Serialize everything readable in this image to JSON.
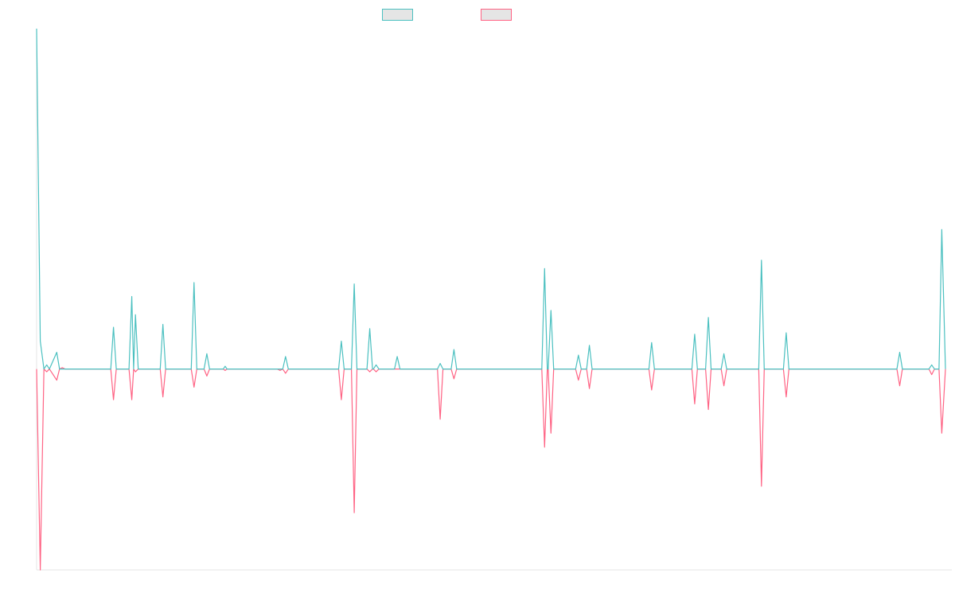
{
  "chart_data": {
    "type": "line",
    "title": "",
    "xlabel": "",
    "ylabel": "",
    "ylim": [
      -7.2,
      12.2
    ],
    "grid": false,
    "legend_placement": "top-center",
    "series": [
      {
        "color": "#4bc0c0",
        "points": [
          [
            0.0,
            12.2
          ],
          [
            0.4,
            1.0
          ],
          [
            0.8,
            0
          ],
          [
            1.1,
            0.15
          ],
          [
            1.4,
            0
          ],
          [
            2.2,
            0.6
          ],
          [
            2.5,
            0
          ],
          [
            2.8,
            0
          ],
          [
            3.6,
            0
          ],
          [
            8.1,
            0
          ],
          [
            8.4,
            1.5
          ],
          [
            8.7,
            0
          ],
          [
            10.1,
            0
          ],
          [
            10.4,
            2.6
          ],
          [
            10.6,
            0
          ],
          [
            10.8,
            1.95
          ],
          [
            11.1,
            0
          ],
          [
            13.5,
            0
          ],
          [
            13.8,
            1.6
          ],
          [
            14.1,
            0
          ],
          [
            16.9,
            0
          ],
          [
            17.2,
            3.1
          ],
          [
            17.5,
            0
          ],
          [
            18.3,
            0
          ],
          [
            18.6,
            0.55
          ],
          [
            18.9,
            0
          ],
          [
            20.4,
            0
          ],
          [
            20.6,
            0.1
          ],
          [
            20.8,
            0
          ],
          [
            26.3,
            0
          ],
          [
            26.6,
            0
          ],
          [
            26.9,
            0
          ],
          [
            27.2,
            0.45
          ],
          [
            27.5,
            0
          ],
          [
            33.0,
            0
          ],
          [
            33.3,
            1.0
          ],
          [
            33.6,
            0
          ],
          [
            34.4,
            0
          ],
          [
            34.7,
            3.05
          ],
          [
            35.0,
            0
          ],
          [
            36.1,
            0
          ],
          [
            36.4,
            1.45
          ],
          [
            36.7,
            0
          ],
          [
            36.8,
            0
          ],
          [
            37.1,
            0.15
          ],
          [
            37.4,
            0
          ],
          [
            39.1,
            0
          ],
          [
            39.4,
            0.45
          ],
          [
            39.7,
            0
          ],
          [
            43.8,
            0
          ],
          [
            44.1,
            0.2
          ],
          [
            44.4,
            0
          ],
          [
            45.3,
            0
          ],
          [
            45.6,
            0.7
          ],
          [
            45.9,
            0
          ],
          [
            55.2,
            0
          ],
          [
            55.5,
            3.6
          ],
          [
            55.8,
            0
          ],
          [
            55.9,
            0
          ],
          [
            56.2,
            2.1
          ],
          [
            56.5,
            0
          ],
          [
            58.9,
            0
          ],
          [
            59.2,
            0.5
          ],
          [
            59.5,
            0
          ],
          [
            60.1,
            0
          ],
          [
            60.4,
            0.85
          ],
          [
            60.7,
            0
          ],
          [
            66.9,
            0
          ],
          [
            67.2,
            0.95
          ],
          [
            67.5,
            0
          ],
          [
            71.6,
            0
          ],
          [
            71.9,
            1.25
          ],
          [
            72.2,
            0
          ],
          [
            73.1,
            0
          ],
          [
            73.4,
            1.85
          ],
          [
            73.7,
            0
          ],
          [
            74.8,
            0
          ],
          [
            75.1,
            0.55
          ],
          [
            75.4,
            0
          ],
          [
            78.9,
            0
          ],
          [
            79.2,
            3.9
          ],
          [
            79.5,
            0
          ],
          [
            81.6,
            0
          ],
          [
            81.9,
            1.3
          ],
          [
            82.2,
            0
          ],
          [
            94.0,
            0
          ],
          [
            94.3,
            0.6
          ],
          [
            94.6,
            0
          ],
          [
            97.5,
            0
          ],
          [
            97.8,
            0.15
          ],
          [
            98.1,
            0
          ],
          [
            98.6,
            0
          ],
          [
            98.9,
            5.0
          ],
          [
            99.3,
            0
          ]
        ]
      },
      {
        "color": "#ff6384",
        "points": [
          [
            0.0,
            0
          ],
          [
            0.4,
            -7.2
          ],
          [
            0.8,
            0
          ],
          [
            1.1,
            -0.1
          ],
          [
            1.4,
            0
          ],
          [
            2.2,
            -0.4
          ],
          [
            2.5,
            0
          ],
          [
            2.8,
            0.05
          ],
          [
            3.1,
            0
          ],
          [
            3.6,
            0
          ],
          [
            8.1,
            0
          ],
          [
            8.4,
            -1.1
          ],
          [
            8.7,
            0
          ],
          [
            10.1,
            0
          ],
          [
            10.4,
            -1.1
          ],
          [
            10.6,
            0
          ],
          [
            10.8,
            -0.1
          ],
          [
            11.1,
            0
          ],
          [
            13.5,
            0
          ],
          [
            13.8,
            -1.0
          ],
          [
            14.1,
            0
          ],
          [
            16.9,
            0
          ],
          [
            17.2,
            -0.65
          ],
          [
            17.5,
            0
          ],
          [
            18.3,
            0
          ],
          [
            18.6,
            -0.25
          ],
          [
            18.9,
            0
          ],
          [
            20.4,
            0
          ],
          [
            20.6,
            -0.05
          ],
          [
            20.8,
            0
          ],
          [
            26.3,
            0
          ],
          [
            26.6,
            -0.05
          ],
          [
            26.9,
            0
          ],
          [
            27.2,
            -0.15
          ],
          [
            27.5,
            0
          ],
          [
            33.0,
            0
          ],
          [
            33.3,
            -1.1
          ],
          [
            33.6,
            0
          ],
          [
            34.4,
            0
          ],
          [
            34.7,
            -5.15
          ],
          [
            35.0,
            0
          ],
          [
            36.1,
            0
          ],
          [
            36.4,
            -0.1
          ],
          [
            36.7,
            0
          ],
          [
            36.8,
            0
          ],
          [
            37.1,
            -0.1
          ],
          [
            37.4,
            0
          ],
          [
            39.1,
            0
          ],
          [
            39.4,
            0
          ],
          [
            39.7,
            0
          ],
          [
            43.8,
            0
          ],
          [
            44.1,
            -1.8
          ],
          [
            44.4,
            0
          ],
          [
            45.3,
            0
          ],
          [
            45.6,
            -0.35
          ],
          [
            45.9,
            0
          ],
          [
            55.2,
            0
          ],
          [
            55.5,
            -2.8
          ],
          [
            55.8,
            0
          ],
          [
            55.9,
            0
          ],
          [
            56.2,
            -2.3
          ],
          [
            56.5,
            0
          ],
          [
            58.9,
            0
          ],
          [
            59.2,
            -0.4
          ],
          [
            59.5,
            0
          ],
          [
            60.1,
            0
          ],
          [
            60.4,
            -0.7
          ],
          [
            60.7,
            0
          ],
          [
            66.9,
            0
          ],
          [
            67.2,
            -0.75
          ],
          [
            67.5,
            0
          ],
          [
            71.6,
            0
          ],
          [
            71.9,
            -1.25
          ],
          [
            72.2,
            0
          ],
          [
            73.1,
            0
          ],
          [
            73.4,
            -1.45
          ],
          [
            73.7,
            0
          ],
          [
            74.8,
            0
          ],
          [
            75.1,
            -0.6
          ],
          [
            75.4,
            0
          ],
          [
            78.9,
            0
          ],
          [
            79.2,
            -4.2
          ],
          [
            79.5,
            0
          ],
          [
            81.6,
            0
          ],
          [
            81.9,
            -1.0
          ],
          [
            82.2,
            0
          ],
          [
            94.0,
            0
          ],
          [
            94.3,
            -0.6
          ],
          [
            94.6,
            0
          ],
          [
            97.5,
            0
          ],
          [
            97.8,
            -0.2
          ],
          [
            98.1,
            0
          ],
          [
            98.6,
            0
          ],
          [
            98.9,
            -2.3
          ],
          [
            99.3,
            0
          ]
        ]
      }
    ]
  }
}
